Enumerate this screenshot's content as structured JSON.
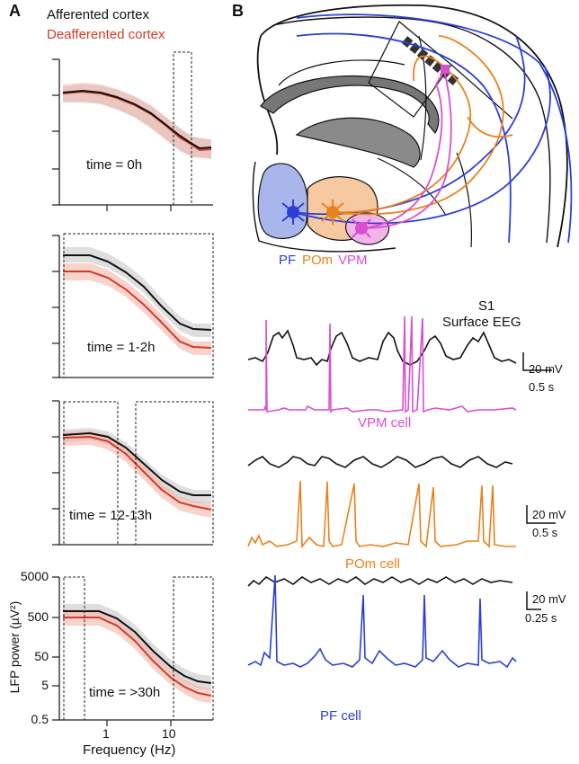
{
  "panel_a": {
    "letter": "A",
    "legend": {
      "afferented": "Afferented cortex",
      "deafferented": "Deafferented cortex"
    },
    "colors": {
      "afferented": "#111111",
      "deafferented": "#d43a2a",
      "afferented_band": "#c8c8c8",
      "deafferented_band": "#f2b5a8"
    },
    "ylabel": "LFP power (µV²)",
    "xlabel": "Frequency (Hz)",
    "xticks": [
      "1",
      "10"
    ],
    "yticks": [
      "5000",
      "500",
      "50",
      "5",
      "0.5"
    ],
    "plots": [
      {
        "time_label": "time = 0h"
      },
      {
        "time_label": "time = 1-2h"
      },
      {
        "time_label": "time = 12-13h"
      },
      {
        "time_label": "time = >30h"
      }
    ]
  },
  "panel_b": {
    "letter": "B",
    "nuclei": {
      "pf": "PF",
      "pom": "POm",
      "vpm": "VPM"
    },
    "colors": {
      "pf": "#2b3fd6",
      "pom": "#e8821e",
      "vpm": "#d94fd0",
      "eeg": "#111111"
    },
    "eeg_label_line1": "S1",
    "eeg_label_line2": "Surface EEG",
    "traces": [
      {
        "cell_label": "VPM cell",
        "scale_v": "20 mV",
        "scale_t": "0.5 s"
      },
      {
        "cell_label": "POm cell",
        "scale_v": "20 mV",
        "scale_t": "0.5 s"
      },
      {
        "cell_label": "PF cell",
        "scale_v": "20 mV",
        "scale_t": "0.25 s"
      }
    ]
  }
}
